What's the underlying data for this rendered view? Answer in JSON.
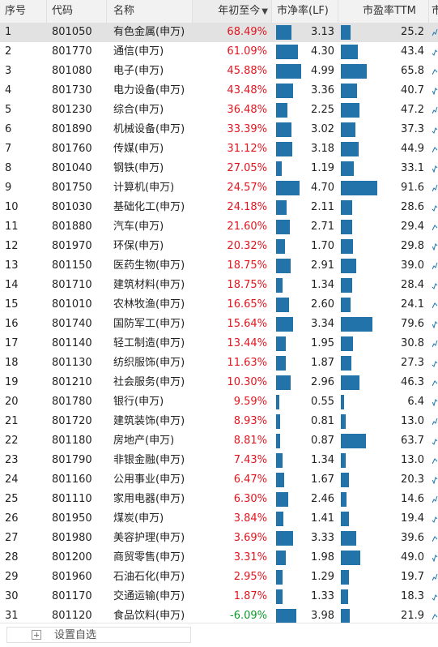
{
  "headers": {
    "idx": "序号",
    "code": "代码",
    "name": "名称",
    "ytd": "年初至今",
    "pb": "市净率(LF)",
    "pe": "市盈率TTM",
    "extra": "市"
  },
  "sort_arrow": "▼",
  "footer": {
    "add_label": "设置自选"
  },
  "colors": {
    "up": "#e0161f",
    "down": "#0a9a2a",
    "bar": "#2273aa",
    "selected_row": "#e2e2e2"
  },
  "rows": [
    {
      "idx": "1",
      "code": "801050",
      "name": "有色金属(申万)",
      "ytd": "68.49%",
      "ytd_value": 68.49,
      "pb": "3.13",
      "pb_value": 3.13,
      "pe": "25.2",
      "pe_value": 25.2
    },
    {
      "idx": "2",
      "code": "801770",
      "name": "通信(申万)",
      "ytd": "61.09%",
      "ytd_value": 61.09,
      "pb": "4.30",
      "pb_value": 4.3,
      "pe": "43.4",
      "pe_value": 43.4
    },
    {
      "idx": "3",
      "code": "801080",
      "name": "电子(申万)",
      "ytd": "45.88%",
      "ytd_value": 45.88,
      "pb": "4.99",
      "pb_value": 4.99,
      "pe": "65.8",
      "pe_value": 65.8
    },
    {
      "idx": "4",
      "code": "801730",
      "name": "电力设备(申万)",
      "ytd": "43.48%",
      "ytd_value": 43.48,
      "pb": "3.36",
      "pb_value": 3.36,
      "pe": "40.7",
      "pe_value": 40.7
    },
    {
      "idx": "5",
      "code": "801230",
      "name": "综合(申万)",
      "ytd": "36.48%",
      "ytd_value": 36.48,
      "pb": "2.25",
      "pb_value": 2.25,
      "pe": "47.2",
      "pe_value": 47.2
    },
    {
      "idx": "6",
      "code": "801890",
      "name": "机械设备(申万)",
      "ytd": "33.39%",
      "ytd_value": 33.39,
      "pb": "3.02",
      "pb_value": 3.02,
      "pe": "37.3",
      "pe_value": 37.3
    },
    {
      "idx": "7",
      "code": "801760",
      "name": "传媒(申万)",
      "ytd": "31.12%",
      "ytd_value": 31.12,
      "pb": "3.18",
      "pb_value": 3.18,
      "pe": "44.9",
      "pe_value": 44.9
    },
    {
      "idx": "8",
      "code": "801040",
      "name": "钢铁(申万)",
      "ytd": "27.05%",
      "ytd_value": 27.05,
      "pb": "1.19",
      "pb_value": 1.19,
      "pe": "33.1",
      "pe_value": 33.1
    },
    {
      "idx": "9",
      "code": "801750",
      "name": "计算机(申万)",
      "ytd": "24.57%",
      "ytd_value": 24.57,
      "pb": "4.70",
      "pb_value": 4.7,
      "pe": "91.6",
      "pe_value": 91.6
    },
    {
      "idx": "10",
      "code": "801030",
      "name": "基础化工(申万)",
      "ytd": "24.18%",
      "ytd_value": 24.18,
      "pb": "2.11",
      "pb_value": 2.11,
      "pe": "28.6",
      "pe_value": 28.6
    },
    {
      "idx": "11",
      "code": "801880",
      "name": "汽车(申万)",
      "ytd": "21.60%",
      "ytd_value": 21.6,
      "pb": "2.71",
      "pb_value": 2.71,
      "pe": "29.4",
      "pe_value": 29.4
    },
    {
      "idx": "12",
      "code": "801970",
      "name": "环保(申万)",
      "ytd": "20.32%",
      "ytd_value": 20.32,
      "pb": "1.70",
      "pb_value": 1.7,
      "pe": "29.8",
      "pe_value": 29.8
    },
    {
      "idx": "13",
      "code": "801150",
      "name": "医药生物(申万)",
      "ytd": "18.75%",
      "ytd_value": 18.75,
      "pb": "2.91",
      "pb_value": 2.91,
      "pe": "39.0",
      "pe_value": 39.0
    },
    {
      "idx": "14",
      "code": "801710",
      "name": "建筑材料(申万)",
      "ytd": "18.75%",
      "ytd_value": 18.75,
      "pb": "1.34",
      "pb_value": 1.34,
      "pe": "28.4",
      "pe_value": 28.4
    },
    {
      "idx": "15",
      "code": "801010",
      "name": "农林牧渔(申万)",
      "ytd": "16.65%",
      "ytd_value": 16.65,
      "pb": "2.60",
      "pb_value": 2.6,
      "pe": "24.1",
      "pe_value": 24.1
    },
    {
      "idx": "16",
      "code": "801740",
      "name": "国防军工(申万)",
      "ytd": "15.64%",
      "ytd_value": 15.64,
      "pb": "3.34",
      "pb_value": 3.34,
      "pe": "79.6",
      "pe_value": 79.6
    },
    {
      "idx": "17",
      "code": "801140",
      "name": "轻工制造(申万)",
      "ytd": "13.44%",
      "ytd_value": 13.44,
      "pb": "1.95",
      "pb_value": 1.95,
      "pe": "30.8",
      "pe_value": 30.8
    },
    {
      "idx": "18",
      "code": "801130",
      "name": "纺织服饰(申万)",
      "ytd": "11.63%",
      "ytd_value": 11.63,
      "pb": "1.87",
      "pb_value": 1.87,
      "pe": "27.3",
      "pe_value": 27.3
    },
    {
      "idx": "19",
      "code": "801210",
      "name": "社会服务(申万)",
      "ytd": "10.30%",
      "ytd_value": 10.3,
      "pb": "2.96",
      "pb_value": 2.96,
      "pe": "46.3",
      "pe_value": 46.3
    },
    {
      "idx": "20",
      "code": "801780",
      "name": "银行(申万)",
      "ytd": "9.59%",
      "ytd_value": 9.59,
      "pb": "0.55",
      "pb_value": 0.55,
      "pe": "6.4",
      "pe_value": 6.4
    },
    {
      "idx": "21",
      "code": "801720",
      "name": "建筑装饰(申万)",
      "ytd": "8.93%",
      "ytd_value": 8.93,
      "pb": "0.81",
      "pb_value": 0.81,
      "pe": "13.0",
      "pe_value": 13.0
    },
    {
      "idx": "22",
      "code": "801180",
      "name": "房地产(申万)",
      "ytd": "8.81%",
      "ytd_value": 8.81,
      "pb": "0.87",
      "pb_value": 0.87,
      "pe": "63.7",
      "pe_value": 63.7
    },
    {
      "idx": "23",
      "code": "801790",
      "name": "非银金融(申万)",
      "ytd": "7.43%",
      "ytd_value": 7.43,
      "pb": "1.34",
      "pb_value": 1.34,
      "pe": "13.0",
      "pe_value": 13.0
    },
    {
      "idx": "24",
      "code": "801160",
      "name": "公用事业(申万)",
      "ytd": "6.47%",
      "ytd_value": 6.47,
      "pb": "1.67",
      "pb_value": 1.67,
      "pe": "20.3",
      "pe_value": 20.3
    },
    {
      "idx": "25",
      "code": "801110",
      "name": "家用电器(申万)",
      "ytd": "6.30%",
      "ytd_value": 6.3,
      "pb": "2.46",
      "pb_value": 2.46,
      "pe": "14.6",
      "pe_value": 14.6
    },
    {
      "idx": "26",
      "code": "801950",
      "name": "煤炭(申万)",
      "ytd": "3.84%",
      "ytd_value": 3.84,
      "pb": "1.41",
      "pb_value": 1.41,
      "pe": "19.4",
      "pe_value": 19.4
    },
    {
      "idx": "27",
      "code": "801980",
      "name": "美容护理(申万)",
      "ytd": "3.69%",
      "ytd_value": 3.69,
      "pb": "3.33",
      "pb_value": 3.33,
      "pe": "39.6",
      "pe_value": 39.6
    },
    {
      "idx": "28",
      "code": "801200",
      "name": "商贸零售(申万)",
      "ytd": "3.31%",
      "ytd_value": 3.31,
      "pb": "1.98",
      "pb_value": 1.98,
      "pe": "49.0",
      "pe_value": 49.0
    },
    {
      "idx": "29",
      "code": "801960",
      "name": "石油石化(申万)",
      "ytd": "2.95%",
      "ytd_value": 2.95,
      "pb": "1.29",
      "pb_value": 1.29,
      "pe": "19.7",
      "pe_value": 19.7
    },
    {
      "idx": "30",
      "code": "801170",
      "name": "交通运输(申万)",
      "ytd": "1.87%",
      "ytd_value": 1.87,
      "pb": "1.33",
      "pb_value": 1.33,
      "pe": "18.3",
      "pe_value": 18.3
    },
    {
      "idx": "31",
      "code": "801120",
      "name": "食品饮料(申万)",
      "ytd": "-6.09%",
      "ytd_value": -6.09,
      "pb": "3.98",
      "pb_value": 3.98,
      "pe": "21.9",
      "pe_value": 21.9
    }
  ]
}
